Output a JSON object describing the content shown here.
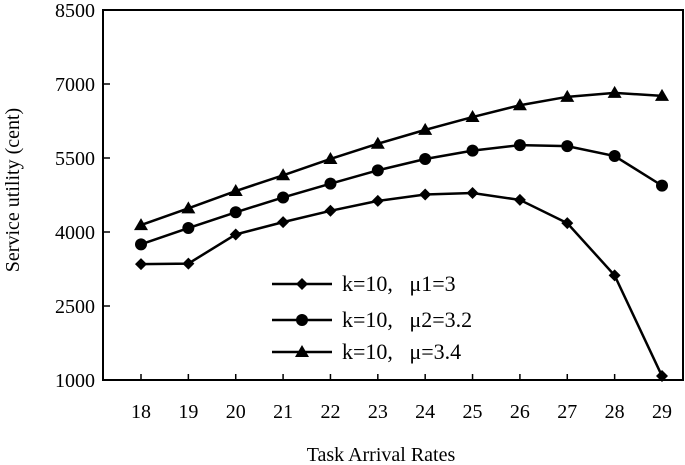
{
  "chart_data": {
    "type": "line",
    "title": "",
    "xlabel": "Task Arrival Rates",
    "ylabel": "Service utility (cent)",
    "x": [
      18,
      19,
      20,
      21,
      22,
      23,
      24,
      25,
      26,
      27,
      28,
      29
    ],
    "ylim": [
      1000,
      8500
    ],
    "yticks": [
      1000,
      2500,
      4000,
      5500,
      7000,
      8500
    ],
    "grid": false,
    "legend_position": "bottom-center",
    "line_color": "#000000",
    "series": [
      {
        "name": "k=10,   μ1=3",
        "marker": "diamond",
        "values": [
          3350,
          3360,
          3950,
          4200,
          4430,
          4630,
          4760,
          4790,
          4650,
          4180,
          3120,
          1080
        ]
      },
      {
        "name": "k=10,   μ2=3.2",
        "marker": "circle",
        "values": [
          3750,
          4080,
          4400,
          4700,
          4980,
          5250,
          5480,
          5650,
          5760,
          5740,
          5540,
          4940
        ]
      },
      {
        "name": "k=10,   μ=3.4",
        "marker": "triangle",
        "values": [
          4140,
          4480,
          4830,
          5150,
          5480,
          5790,
          6070,
          6330,
          6570,
          6740,
          6820,
          6760
        ]
      }
    ]
  }
}
